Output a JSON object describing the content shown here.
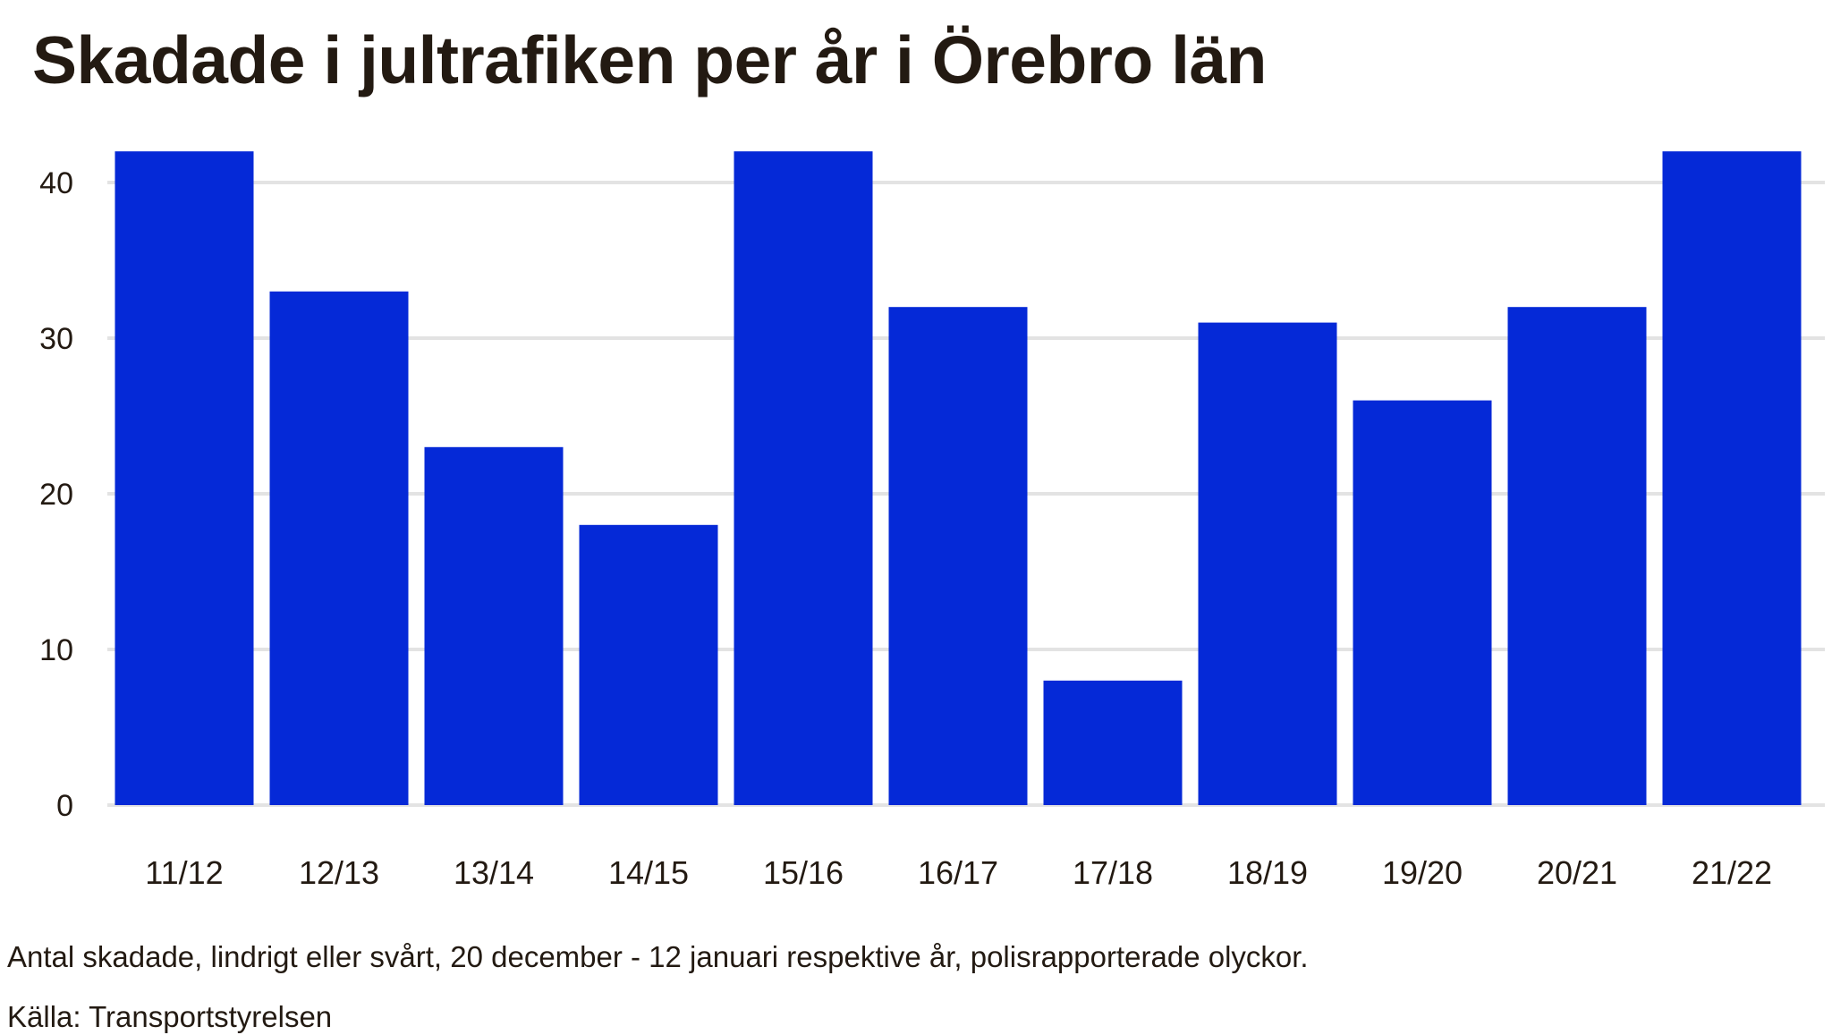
{
  "title": "Skadade i jultrafiken per år i Örebro län",
  "note": "Antal skadade, lindrigt eller svårt, 20 december - 12 januari respektive år, polisrapporterade olyckor.",
  "source": "Källa: Transportstyrelsen",
  "colors": {
    "bar": "#0529d7",
    "grid": "#e3e3e3",
    "text": "#231a12"
  },
  "chart_data": {
    "type": "bar",
    "categories": [
      "11/12",
      "12/13",
      "13/14",
      "14/15",
      "15/16",
      "16/17",
      "17/18",
      "18/19",
      "19/20",
      "20/21",
      "21/22"
    ],
    "values": [
      42,
      33,
      23,
      18,
      42,
      32,
      8,
      31,
      26,
      32,
      42
    ],
    "yticks": [
      0,
      10,
      20,
      30,
      40
    ],
    "ylim": [
      0,
      42
    ],
    "grid": true,
    "title": "Skadade i jultrafiken per år i Örebro län",
    "xlabel": "",
    "ylabel": ""
  }
}
